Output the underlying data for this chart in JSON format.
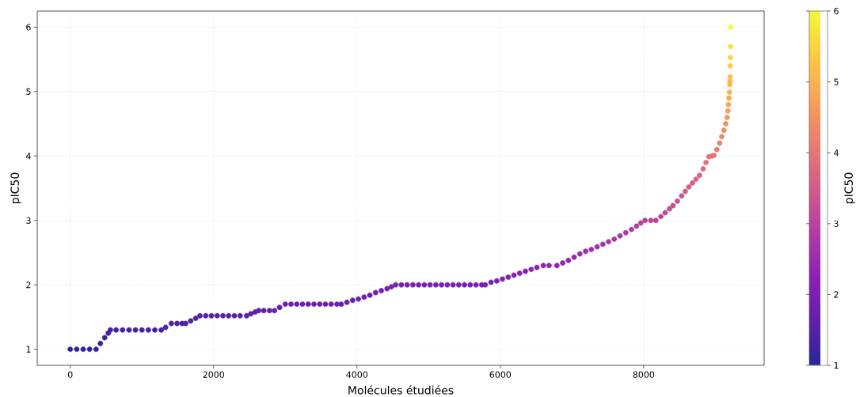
{
  "chart_data": {
    "type": "scatter",
    "xlabel": "Molécules étudiées",
    "ylabel": "pIC50",
    "clabel": "pIC50",
    "x": [
      0,
      90,
      180,
      270,
      360,
      420,
      480,
      530,
      560,
      640,
      730,
      820,
      910,
      1000,
      1090,
      1180,
      1270,
      1330,
      1410,
      1490,
      1560,
      1610,
      1680,
      1750,
      1810,
      1890,
      1970,
      2050,
      2130,
      2210,
      2290,
      2370,
      2460,
      2520,
      2580,
      2630,
      2700,
      2780,
      2850,
      2920,
      3000,
      3080,
      3160,
      3240,
      3320,
      3400,
      3480,
      3560,
      3640,
      3720,
      3780,
      3860,
      3940,
      4020,
      4100,
      4180,
      4260,
      4340,
      4420,
      4480,
      4540,
      4620,
      4700,
      4780,
      4860,
      4940,
      5020,
      5100,
      5180,
      5260,
      5340,
      5420,
      5500,
      5580,
      5660,
      5740,
      5790,
      5870,
      5950,
      6030,
      6110,
      6190,
      6270,
      6350,
      6430,
      6510,
      6600,
      6680,
      6790,
      6870,
      6950,
      7030,
      7110,
      7190,
      7270,
      7350,
      7430,
      7510,
      7590,
      7670,
      7750,
      7830,
      7900,
      7960,
      8020,
      8100,
      8170,
      8240,
      8300,
      8360,
      8410,
      8470,
      8530,
      8580,
      8630,
      8680,
      8730,
      8780,
      8830,
      8870,
      8910,
      8950,
      8980,
      9020,
      9060,
      9090,
      9120,
      9145,
      9165,
      9175,
      9182,
      9190,
      9198,
      9202,
      9204,
      9206,
      9208,
      9210,
      9212,
      9215
    ],
    "values": [
      1.0,
      1.0,
      1.0,
      1.0,
      1.0,
      1.09,
      1.18,
      1.25,
      1.3,
      1.3,
      1.3,
      1.3,
      1.3,
      1.3,
      1.3,
      1.3,
      1.3,
      1.34,
      1.4,
      1.4,
      1.4,
      1.4,
      1.44,
      1.48,
      1.52,
      1.52,
      1.52,
      1.52,
      1.52,
      1.52,
      1.52,
      1.52,
      1.52,
      1.55,
      1.58,
      1.6,
      1.6,
      1.6,
      1.6,
      1.65,
      1.7,
      1.7,
      1.7,
      1.7,
      1.7,
      1.7,
      1.7,
      1.7,
      1.7,
      1.7,
      1.7,
      1.73,
      1.76,
      1.78,
      1.81,
      1.84,
      1.88,
      1.91,
      1.94,
      1.97,
      2.0,
      2.0,
      2.0,
      2.0,
      2.0,
      2.0,
      2.0,
      2.0,
      2.0,
      2.0,
      2.0,
      2.0,
      2.0,
      2.0,
      2.0,
      2.0,
      2.0,
      2.04,
      2.06,
      2.09,
      2.12,
      2.15,
      2.18,
      2.21,
      2.24,
      2.27,
      2.3,
      2.3,
      2.3,
      2.34,
      2.38,
      2.43,
      2.48,
      2.52,
      2.55,
      2.59,
      2.63,
      2.67,
      2.71,
      2.76,
      2.81,
      2.86,
      2.91,
      2.96,
      3.0,
      3.0,
      3.0,
      3.06,
      3.12,
      3.18,
      3.23,
      3.3,
      3.38,
      3.45,
      3.52,
      3.58,
      3.64,
      3.7,
      3.8,
      3.9,
      3.99,
      4.0,
      4.01,
      4.1,
      4.2,
      4.3,
      4.4,
      4.5,
      4.6,
      4.7,
      4.8,
      4.9,
      4.99,
      5.11,
      5.16,
      5.23,
      5.4,
      5.53,
      5.7,
      6.0
    ],
    "cvalues": [
      1.0,
      1.0,
      1.0,
      1.0,
      1.0,
      1.09,
      1.18,
      1.25,
      1.3,
      1.3,
      1.3,
      1.3,
      1.3,
      1.3,
      1.3,
      1.3,
      1.3,
      1.34,
      1.4,
      1.4,
      1.4,
      1.4,
      1.44,
      1.48,
      1.52,
      1.52,
      1.52,
      1.52,
      1.52,
      1.52,
      1.52,
      1.52,
      1.52,
      1.55,
      1.58,
      1.6,
      1.6,
      1.6,
      1.6,
      1.65,
      1.7,
      1.7,
      1.7,
      1.7,
      1.7,
      1.7,
      1.7,
      1.7,
      1.7,
      1.7,
      1.7,
      1.73,
      1.76,
      1.78,
      1.81,
      1.84,
      1.88,
      1.91,
      1.94,
      1.97,
      2.0,
      2.0,
      2.0,
      2.0,
      2.0,
      2.0,
      2.0,
      2.0,
      2.0,
      2.0,
      2.0,
      2.0,
      2.0,
      2.0,
      2.0,
      2.0,
      2.0,
      2.04,
      2.06,
      2.09,
      2.12,
      2.15,
      2.18,
      2.21,
      2.24,
      2.27,
      2.3,
      2.3,
      2.3,
      2.34,
      2.38,
      2.43,
      2.48,
      2.52,
      2.55,
      2.59,
      2.63,
      2.67,
      2.71,
      2.76,
      2.81,
      2.86,
      2.91,
      2.96,
      3.0,
      3.0,
      3.0,
      3.06,
      3.12,
      3.18,
      3.23,
      3.3,
      3.38,
      3.45,
      3.52,
      3.58,
      3.64,
      3.7,
      3.8,
      3.9,
      3.99,
      4.0,
      4.01,
      4.1,
      4.2,
      4.3,
      4.4,
      4.5,
      4.6,
      4.7,
      4.8,
      4.9,
      4.99,
      5.11,
      5.16,
      5.23,
      5.4,
      5.53,
      5.7,
      6.0
    ],
    "xlim": [
      -461,
      9681
    ],
    "ylim": [
      0.75,
      6.25
    ],
    "xticks": [
      0,
      2000,
      4000,
      6000,
      8000
    ],
    "yticks": [
      1,
      2,
      3,
      4,
      5,
      6
    ],
    "clim": [
      1,
      6
    ],
    "cticks": [
      1,
      2,
      3,
      4,
      5,
      6
    ],
    "grid": true,
    "marker": "circle"
  }
}
